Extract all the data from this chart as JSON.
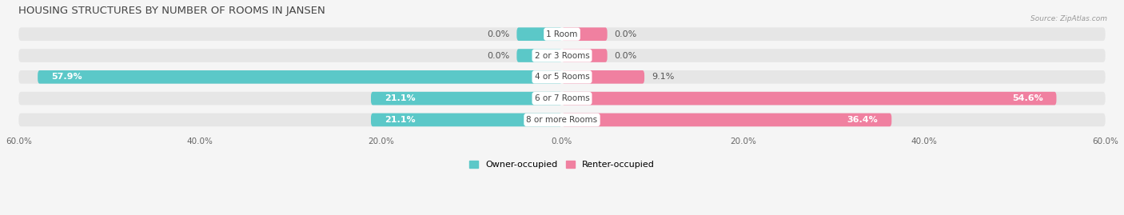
{
  "title": "HOUSING STRUCTURES BY NUMBER OF ROOMS IN JANSEN",
  "source": "Source: ZipAtlas.com",
  "categories": [
    "1 Room",
    "2 or 3 Rooms",
    "4 or 5 Rooms",
    "6 or 7 Rooms",
    "8 or more Rooms"
  ],
  "owner_values": [
    0.0,
    0.0,
    57.9,
    21.1,
    21.1
  ],
  "renter_values": [
    0.0,
    0.0,
    9.1,
    54.6,
    36.4
  ],
  "owner_color": "#5bc8c8",
  "renter_color": "#f080a0",
  "axis_max": 60.0,
  "bg_color": "#f5f5f5",
  "bar_bg_color": "#e6e6e6",
  "bar_height": 0.62,
  "title_fontsize": 9.5,
  "label_fontsize": 8,
  "tick_fontsize": 7.5,
  "category_fontsize": 7.5,
  "figsize": [
    14.06,
    2.69
  ],
  "dpi": 100,
  "zero_bar_visual": 5.0,
  "category_bubble_color": "#ffffff"
}
